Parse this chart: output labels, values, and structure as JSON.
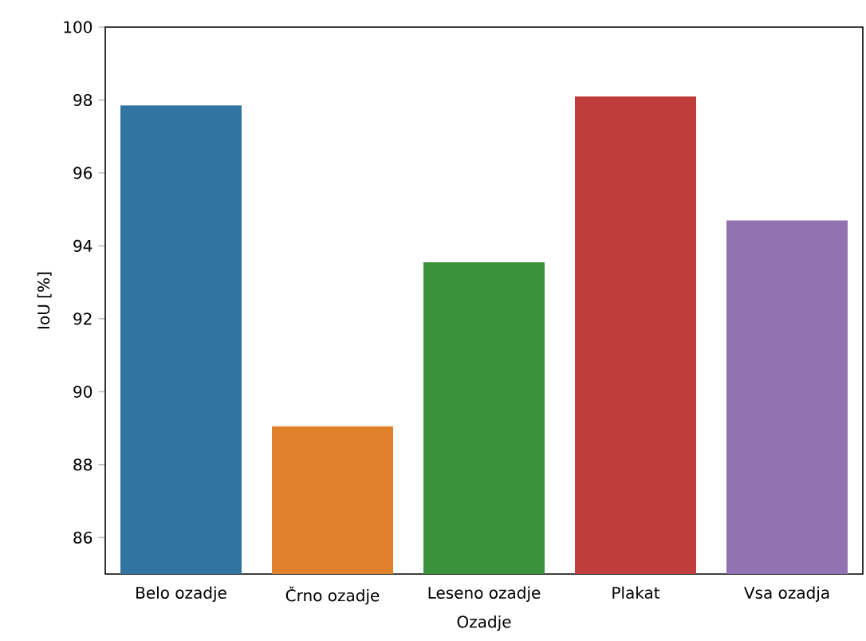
{
  "chart_data": {
    "type": "bar",
    "xlabel": "Ozadje",
    "ylabel": "IoU [%]",
    "categories": [
      "Belo ozadje",
      "Črno ozadje",
      "Leseno ozadje",
      "Plakat",
      "Vsa ozadja"
    ],
    "values": [
      97.85,
      89.05,
      93.55,
      98.1,
      94.7
    ],
    "colors": [
      "#3274a1",
      "#e1812c",
      "#3a923a",
      "#c03d3e",
      "#9372b2"
    ],
    "ylim": [
      85,
      100
    ],
    "yticks": [
      86,
      88,
      90,
      92,
      94,
      96,
      98,
      100
    ],
    "grid": false
  }
}
